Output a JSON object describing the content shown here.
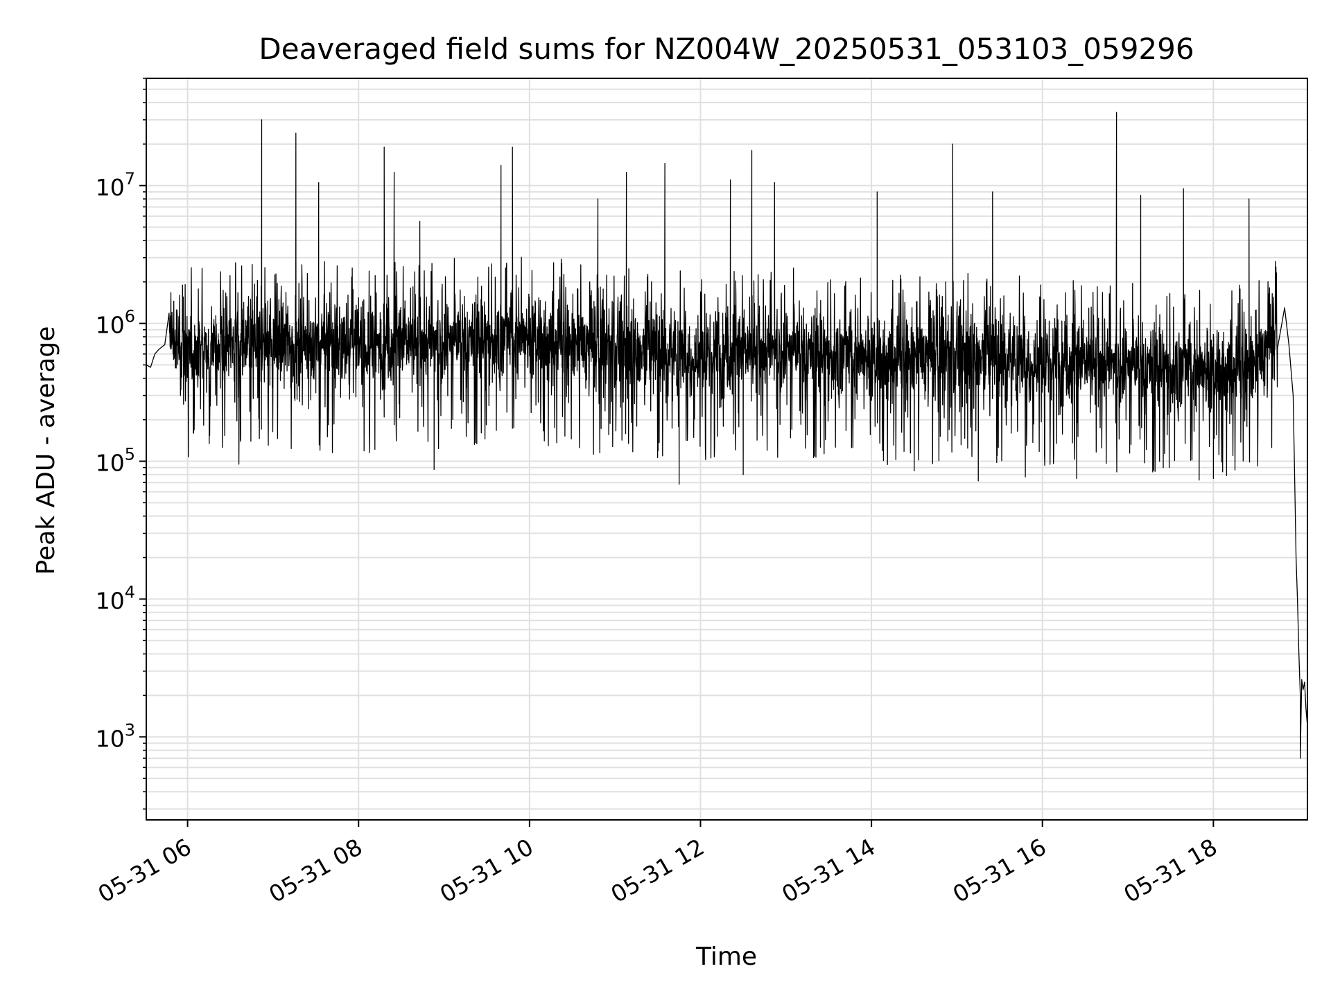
{
  "chart_data": {
    "type": "line",
    "title": "Deaveraged field sums for NZ004W_20250531_053103_059296",
    "xlabel": "Time",
    "ylabel": "Peak ADU - average",
    "yscale": "log",
    "ylim": [
      250,
      60000000
    ],
    "xlim": [
      "2025-05-31 05:31",
      "2025-05-31 19:06"
    ],
    "grid": true,
    "line_color": "#000000",
    "grid_color": "#e0e0e0",
    "x_ticks": [
      {
        "t": "2025-05-31 06:00",
        "label": "05-31 06"
      },
      {
        "t": "2025-05-31 08:00",
        "label": "05-31 08"
      },
      {
        "t": "2025-05-31 10:00",
        "label": "05-31 10"
      },
      {
        "t": "2025-05-31 12:00",
        "label": "05-31 12"
      },
      {
        "t": "2025-05-31 14:00",
        "label": "05-31 14"
      },
      {
        "t": "2025-05-31 16:00",
        "label": "05-31 16"
      },
      {
        "t": "2025-05-31 18:00",
        "label": "05-31 18"
      }
    ],
    "y_ticks": [
      {
        "value": 1000,
        "base": "10",
        "exp": "3"
      },
      {
        "value": 10000,
        "base": "10",
        "exp": "4"
      },
      {
        "value": 100000,
        "base": "10",
        "exp": "5"
      },
      {
        "value": 1000000,
        "base": "10",
        "exp": "6"
      },
      {
        "value": 10000000,
        "base": "10",
        "exp": "7"
      }
    ],
    "series": [
      {
        "points": [
          [
            "2025-05-31 05:31",
            500000
          ],
          [
            "2025-05-31 05:34",
            480000
          ],
          [
            "2025-05-31 05:37",
            600000
          ],
          [
            "2025-05-31 05:40",
            650000
          ],
          [
            "2025-05-31 05:44",
            700000
          ],
          [
            "2025-05-31 05:48",
            750000
          ],
          [
            "2025-05-31 06:00",
            650000
          ],
          [
            "2025-05-31 06:30",
            700000
          ],
          [
            "2025-05-31 07:00",
            750000
          ],
          [
            "2025-05-31 08:00",
            700000
          ],
          [
            "2025-05-31 09:00",
            750000
          ],
          [
            "2025-05-31 10:00",
            800000
          ],
          [
            "2025-05-31 11:00",
            650000
          ],
          [
            "2025-05-31 12:00",
            600000
          ],
          [
            "2025-05-31 13:00",
            650000
          ],
          [
            "2025-05-31 14:00",
            550000
          ],
          [
            "2025-05-31 15:00",
            600000
          ],
          [
            "2025-05-31 16:00",
            550000
          ],
          [
            "2025-05-31 17:00",
            500000
          ],
          [
            "2025-05-31 18:00",
            450000
          ],
          [
            "2025-05-31 18:30",
            500000
          ],
          [
            "2025-05-31 18:45",
            900000
          ],
          [
            "2025-05-31 18:50",
            1300000
          ],
          [
            "2025-05-31 18:53",
            700000
          ],
          [
            "2025-05-31 18:56",
            300000
          ],
          [
            "2025-05-31 18:57",
            80000
          ],
          [
            "2025-05-31 18:58",
            20000
          ],
          [
            "2025-05-31 18:59",
            10000
          ],
          [
            "2025-05-31 19:00",
            4000
          ],
          [
            "2025-05-31 19:01",
            2000
          ],
          [
            "2025-05-31 19:01",
            700
          ],
          [
            "2025-05-31 19:02",
            2600
          ],
          [
            "2025-05-31 19:03",
            2200
          ],
          [
            "2025-05-31 19:04",
            2500
          ],
          [
            "2025-05-31 19:05",
            1600
          ],
          [
            "2025-05-31 19:06",
            1200
          ]
        ],
        "noise_band": {
          "start": "2025-05-31 05:47",
          "end": "2025-05-31 18:45",
          "typical_low": 150000,
          "typical_high": 1500000,
          "typical_center": 650000
        },
        "spikes": [
          [
            "2025-05-31 06:52",
            30000000
          ],
          [
            "2025-05-31 07:16",
            24000000
          ],
          [
            "2025-05-31 07:32",
            10500000
          ],
          [
            "2025-05-31 08:18",
            19000000
          ],
          [
            "2025-05-31 08:25",
            12500000
          ],
          [
            "2025-05-31 08:43",
            5500000
          ],
          [
            "2025-05-31 09:48",
            19000000
          ],
          [
            "2025-05-31 09:40",
            14000000
          ],
          [
            "2025-05-31 10:48",
            8000000
          ],
          [
            "2025-05-31 11:08",
            12500000
          ],
          [
            "2025-05-31 11:35",
            14500000
          ],
          [
            "2025-05-31 12:21",
            11000000
          ],
          [
            "2025-05-31 12:36",
            18000000
          ],
          [
            "2025-05-31 12:52",
            10500000
          ],
          [
            "2025-05-31 14:04",
            9000000
          ],
          [
            "2025-05-31 14:57",
            20000000
          ],
          [
            "2025-05-31 15:25",
            9000000
          ],
          [
            "2025-05-31 16:52",
            34000000
          ],
          [
            "2025-05-31 17:09",
            8500000
          ],
          [
            "2025-05-31 17:39",
            9500000
          ],
          [
            "2025-05-31 18:25",
            8000000
          ]
        ],
        "dips": [
          [
            "2025-05-31 06:36",
            95000
          ],
          [
            "2025-05-31 08:53",
            87000
          ],
          [
            "2025-05-31 11:45",
            68000
          ],
          [
            "2025-05-31 12:30",
            80000
          ],
          [
            "2025-05-31 14:30",
            85000
          ],
          [
            "2025-05-31 15:15",
            72000
          ],
          [
            "2025-05-31 15:48",
            77000
          ],
          [
            "2025-05-31 16:24",
            75000
          ],
          [
            "2025-05-31 17:29",
            90000
          ],
          [
            "2025-05-31 17:50",
            73000
          ],
          [
            "2025-05-31 18:00",
            75000
          ]
        ]
      }
    ]
  }
}
